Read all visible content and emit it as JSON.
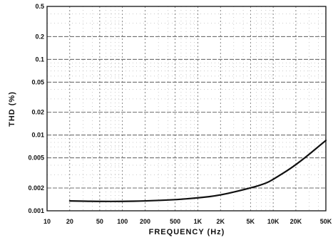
{
  "chart_data": {
    "type": "line",
    "title": "",
    "xlabel": "FREQUENCY (Hz)",
    "ylabel": "THD (%)",
    "x_scale": "log",
    "y_scale": "log",
    "xlim": [
      10,
      50000
    ],
    "ylim": [
      0.001,
      0.5
    ],
    "grid": true,
    "x_ticks": [
      {
        "value": 10,
        "label": "10"
      },
      {
        "value": 20,
        "label": "20"
      },
      {
        "value": 50,
        "label": "50"
      },
      {
        "value": 100,
        "label": "100"
      },
      {
        "value": 200,
        "label": "200"
      },
      {
        "value": 500,
        "label": "500"
      },
      {
        "value": 1000,
        "label": "1K"
      },
      {
        "value": 2000,
        "label": "2K"
      },
      {
        "value": 5000,
        "label": "5K"
      },
      {
        "value": 10000,
        "label": "10K"
      },
      {
        "value": 20000,
        "label": "20K"
      },
      {
        "value": 50000,
        "label": "50K"
      }
    ],
    "y_ticks": [
      {
        "value": 0.001,
        "label": "0.001"
      },
      {
        "value": 0.002,
        "label": "0.002"
      },
      {
        "value": 0.005,
        "label": "0.005"
      },
      {
        "value": 0.01,
        "label": "0.01"
      },
      {
        "value": 0.02,
        "label": "0.02"
      },
      {
        "value": 0.05,
        "label": "0.05"
      },
      {
        "value": 0.1,
        "label": "0.1"
      },
      {
        "value": 0.2,
        "label": "0.2"
      },
      {
        "value": 0.5,
        "label": "0.5"
      }
    ],
    "series": [
      {
        "x": [
          20,
          50,
          100,
          200,
          500,
          1000,
          2000,
          5000,
          8000,
          10000,
          20000,
          50000
        ],
        "y": [
          0.00135,
          0.00133,
          0.00133,
          0.00135,
          0.0014,
          0.00148,
          0.0016,
          0.002,
          0.0023,
          0.0026,
          0.004,
          0.0085
        ]
      }
    ]
  }
}
